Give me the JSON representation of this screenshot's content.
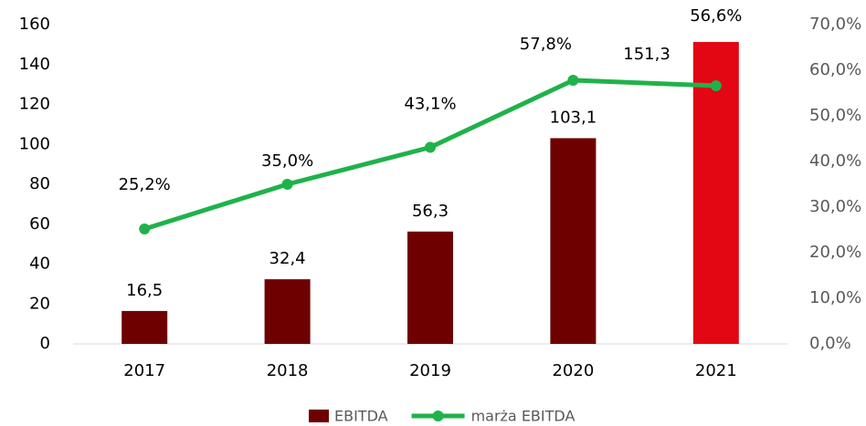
{
  "chart_data": {
    "type": "bar",
    "categories": [
      "2017",
      "2018",
      "2019",
      "2020",
      "2021"
    ],
    "series": [
      {
        "name": "EBITDA",
        "type": "bar",
        "color": "#6e0000",
        "colors": [
          "#6e0000",
          "#6e0000",
          "#6e0000",
          "#6e0000",
          "#e30613"
        ],
        "values": [
          16.5,
          32.4,
          56.3,
          103.1,
          151.3
        ],
        "value_labels": [
          "16,5",
          "32,4",
          "56,3",
          "103,1",
          "151,3"
        ]
      },
      {
        "name": "marża EBITDA",
        "type": "line",
        "axis": "y2",
        "color": "#1fb24a",
        "values": [
          25.2,
          35.0,
          43.1,
          57.8,
          56.6
        ],
        "value_labels": [
          "25,2%",
          "35,0%",
          "43,1%",
          "57,8%",
          "56,6%"
        ]
      }
    ],
    "ylim": [
      0,
      160
    ],
    "yticks": [
      0,
      20,
      40,
      60,
      80,
      100,
      120,
      140,
      160
    ],
    "y2lim": [
      0,
      70
    ],
    "y2ticks": [
      {
        "value": 0,
        "label": "0,0%"
      },
      {
        "value": 10,
        "label": "10,0%"
      },
      {
        "value": 20,
        "label": "20,0%"
      },
      {
        "value": 30,
        "label": "30,0%"
      },
      {
        "value": 40,
        "label": "40,0%"
      },
      {
        "value": 50,
        "label": "50,0%"
      },
      {
        "value": 60,
        "label": "60,0%"
      },
      {
        "value": 70,
        "label": "70,0%"
      }
    ],
    "legend": "bottom"
  }
}
